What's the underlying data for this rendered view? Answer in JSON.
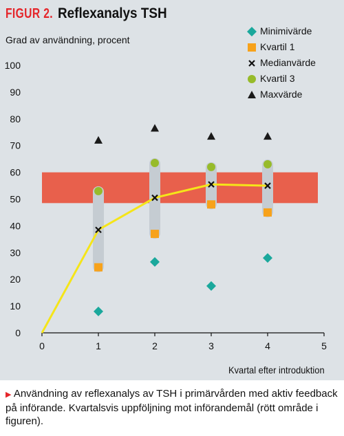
{
  "figure": {
    "label": "FIGUR 2.",
    "title": "Reflexanalys TSH",
    "caption": "Användning av reflexanalys av TSH i primärvården med aktiv feedback på införande. Kvartalsvis uppföljning mot införandemål (rött område i figuren)."
  },
  "colors": {
    "panel_bg": "#dde2e6",
    "target_band": "#e8604c",
    "iqr_bar": "#c5ccd2",
    "median_line": "#f5e519",
    "minimum": "#1aa89c",
    "quartile1": "#f7a21b",
    "quartile3": "#97bb2a",
    "maximum": "#1a1a1a",
    "accent": "#e5252a"
  },
  "chart_data": {
    "type": "scatter",
    "xlabel": "Kvartal efter introduktion",
    "ylabel": "Grad av användning, procent",
    "xlim": [
      0,
      5
    ],
    "ylim": [
      0,
      100
    ],
    "xticks": [
      0,
      1,
      2,
      3,
      4,
      5
    ],
    "yticks": [
      0,
      10,
      20,
      30,
      40,
      50,
      60,
      70,
      80,
      90,
      100
    ],
    "grid": false,
    "legend_position": "top-right",
    "target_band": [
      48.5,
      60
    ],
    "series": [
      {
        "name": "Minimivärde",
        "marker": "diamond",
        "x": [
          1,
          2,
          3,
          4
        ],
        "y": [
          8,
          26.5,
          17.5,
          28
        ]
      },
      {
        "name": "Kvartil 1",
        "marker": "square",
        "x": [
          1,
          2,
          3,
          4
        ],
        "y": [
          24.5,
          37,
          48,
          45
        ]
      },
      {
        "name": "Medianvärde",
        "marker": "cross",
        "x": [
          0,
          1,
          2,
          3,
          4
        ],
        "y": [
          0,
          38.5,
          50.5,
          55.5,
          55
        ],
        "line": true
      },
      {
        "name": "Kvartil 3",
        "marker": "circle",
        "x": [
          1,
          2,
          3,
          4
        ],
        "y": [
          53,
          63.5,
          62,
          63
        ]
      },
      {
        "name": "Maxvärde",
        "marker": "triangle",
        "x": [
          1,
          2,
          3,
          4
        ],
        "y": [
          72,
          76.5,
          73.5,
          73.5
        ]
      }
    ]
  }
}
